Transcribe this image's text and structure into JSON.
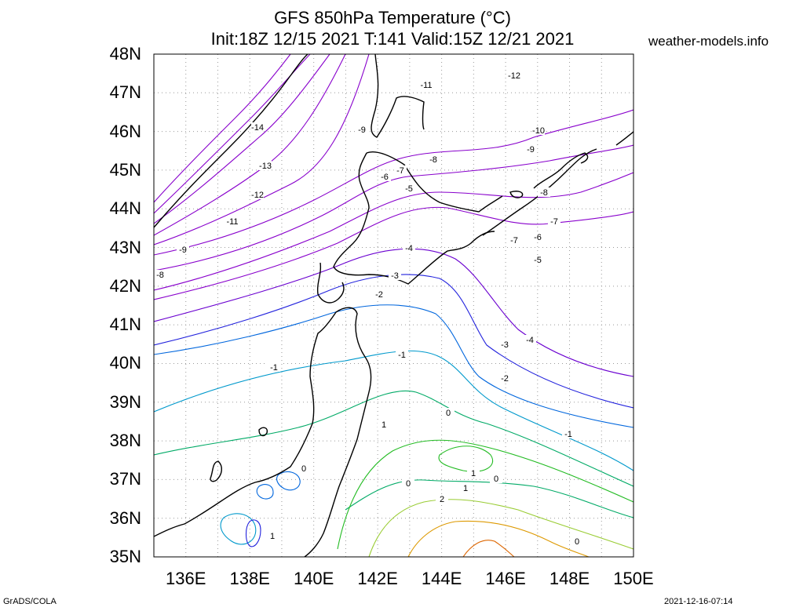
{
  "title": {
    "line1": "GFS 850hPa Temperature (°C)",
    "line2": "Init:18Z 12/15 2021 T:141 Valid:15Z 12/21 2021"
  },
  "site": "weather-models.info",
  "footer": {
    "credit": "GrADS/COLA",
    "timestamp": "2021-12-16-07:14"
  },
  "axes": {
    "lat_labels": [
      "48N",
      "47N",
      "46N",
      "45N",
      "44N",
      "43N",
      "42N",
      "41N",
      "40N",
      "39N",
      "38N",
      "37N",
      "36N",
      "35N"
    ],
    "lon_labels": [
      "136E",
      "138E",
      "140E",
      "142E",
      "144E",
      "146E",
      "148E",
      "150E"
    ]
  },
  "map": {
    "lon_range": [
      135,
      150
    ],
    "lat_range": [
      35,
      48
    ],
    "grid": "dotted",
    "variable": "850hPa temperature",
    "contour_interval": 1,
    "contour_labels": [
      "-14",
      "-13",
      "-12",
      "-12",
      "-11",
      "-11",
      "-10",
      "-9",
      "-9",
      "-9",
      "-8",
      "-8",
      "-8",
      "-7",
      "-7",
      "-7",
      "-6",
      "-6",
      "-5",
      "-5",
      "-4",
      "-4",
      "-3",
      "-3",
      "-2",
      "-2",
      "-1",
      "-1",
      "-1",
      "0",
      "0",
      "0",
      "0",
      "0",
      "1",
      "1",
      "1",
      "1",
      "2"
    ],
    "colors": {
      "cold": "#8800cc",
      "minus4": "#6a00d0",
      "minus3": "#2222dd",
      "minus2": "#0066dd",
      "minus1": "#0099cc",
      "zero": "#00aa66",
      "plus1": "#22bb22",
      "plus2": "#99cc33",
      "warm": "#dd9900",
      "warmer": "#dd6600",
      "coast": "#000000"
    }
  }
}
